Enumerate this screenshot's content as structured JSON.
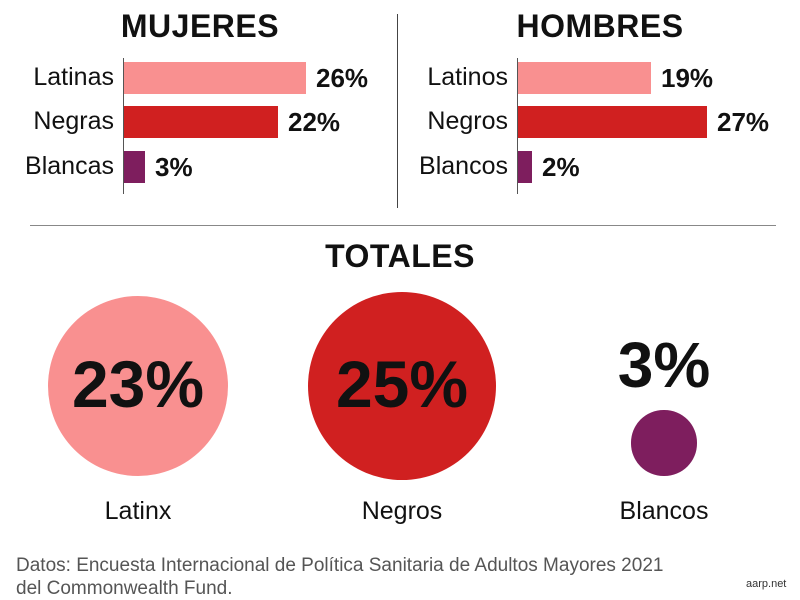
{
  "colors": {
    "latino": "#f99090",
    "negro": "#d02020",
    "blanco": "#7e1e5e"
  },
  "chart_data": [
    {
      "type": "bar",
      "title": "MUJERES",
      "categories": [
        "Latinas",
        "Negras",
        "Blancas"
      ],
      "values": [
        26,
        22,
        3
      ],
      "value_labels": [
        "26%",
        "22%",
        "3%"
      ]
    },
    {
      "type": "bar",
      "title": "HOMBRES",
      "categories": [
        "Latinos",
        "Negros",
        "Blancos"
      ],
      "values": [
        19,
        27,
        2
      ],
      "value_labels": [
        "19%",
        "27%",
        "2%"
      ]
    },
    {
      "type": "bubble",
      "title": "TOTALES",
      "categories": [
        "Latinx",
        "Negros",
        "Blancos"
      ],
      "values": [
        23,
        25,
        3
      ],
      "value_labels": [
        "23%",
        "25%",
        "3%"
      ]
    }
  ],
  "source": {
    "line1": "Datos: Encuesta Internacional de Política Sanitaria de Adultos Mayores 2021",
    "line2": "del Commonwealth Fund."
  },
  "credit": "aarp.net"
}
